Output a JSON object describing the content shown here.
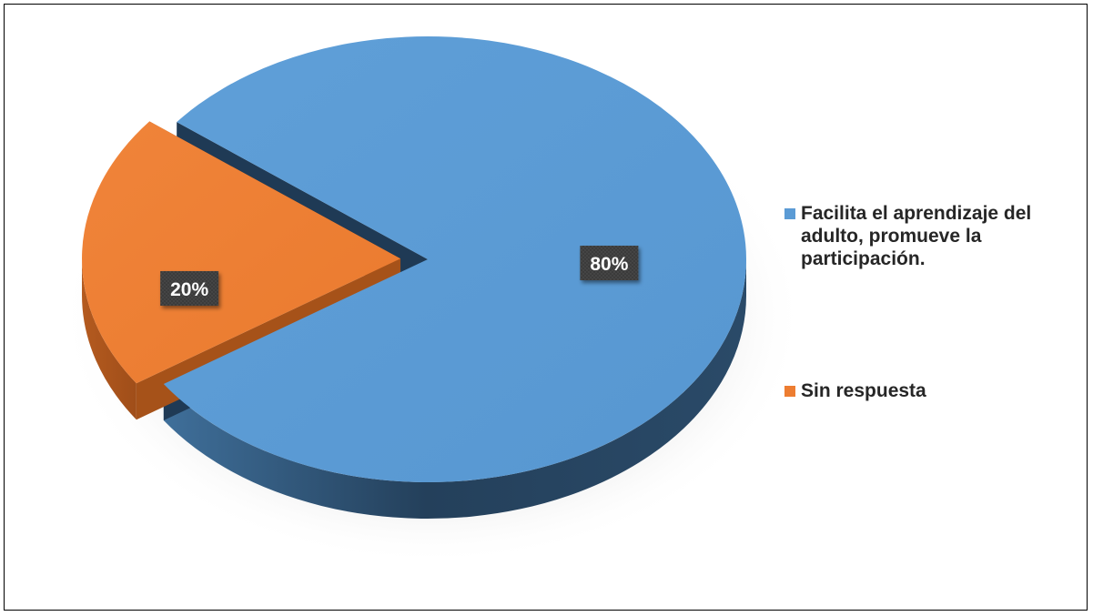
{
  "chart_data": {
    "type": "pie",
    "title": "",
    "series": [
      {
        "name": "Facilita el aprendizaje del adulto, promueve la participación.",
        "value": 80,
        "label": "80%",
        "color": "#5b9bd5"
      },
      {
        "name": "Sin respuesta",
        "value": 20,
        "label": "20%",
        "color": "#ed7d31"
      }
    ],
    "exploded": "Sin respuesta",
    "style": "3d",
    "legend_position": "right"
  },
  "legend": {
    "items": [
      {
        "label": "Facilita el aprendizaje del adulto, promueve la participación.",
        "color": "#5b9bd5"
      },
      {
        "label": "Sin respuesta",
        "color": "#ed7d31"
      }
    ]
  }
}
